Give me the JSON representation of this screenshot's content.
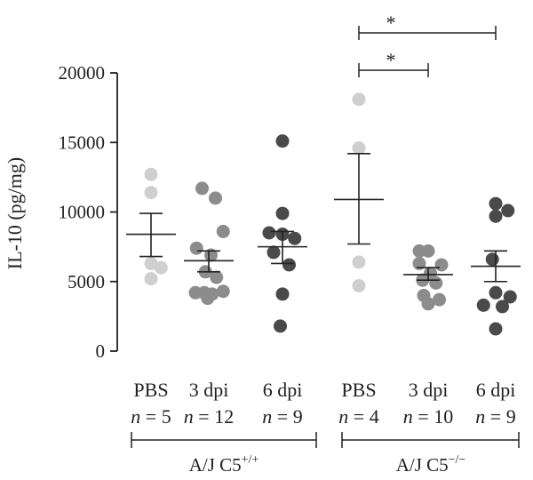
{
  "chart_data": {
    "type": "scatter",
    "ylabel": "IL-10 (pg/mg)",
    "ylim": [
      0,
      20000
    ],
    "y_ticks": [
      0,
      5000,
      10000,
      15000,
      20000
    ],
    "y_tick_labels": [
      "0",
      "5000",
      "10000",
      "15000",
      "20000"
    ],
    "group_labels": {
      "wt": {
        "prefix": "A/J C5",
        "sup": "+/+"
      },
      "ko": {
        "prefix": "A/J C5",
        "sup": "−/−"
      }
    },
    "colors": {
      "PBS": "#cfcfcf",
      "3 dpi": "#8c8c8c",
      "6 dpi": "#4a4a4a",
      "lines": "#222222"
    },
    "groups": [
      {
        "genotype": "wt",
        "label": "PBS",
        "n_label": "n = 5",
        "n_prefix": "n",
        "n_value": "= 5",
        "mean": 8400,
        "sem_low": 6800,
        "sem_high": 9900,
        "points": [
          [
            0.0,
            12700
          ],
          [
            0.0,
            11400
          ],
          [
            0.0,
            6300
          ],
          [
            0.0,
            5200
          ],
          [
            0.45,
            6000
          ]
        ]
      },
      {
        "genotype": "wt",
        "label": "3 dpi",
        "n_label": "n = 12",
        "n_prefix": "n",
        "n_value": "= 12",
        "mean": 6500,
        "sem_low": 5700,
        "sem_high": 7200,
        "points": [
          [
            -0.3,
            11700
          ],
          [
            0.3,
            11000
          ],
          [
            0.65,
            8600
          ],
          [
            -0.55,
            7400
          ],
          [
            0.1,
            6900
          ],
          [
            -0.15,
            5700
          ],
          [
            0.35,
            5300
          ],
          [
            -0.6,
            4200
          ],
          [
            0.65,
            4300
          ],
          [
            -0.2,
            4200
          ],
          [
            0.15,
            4100
          ],
          [
            -0.05,
            3800
          ]
        ]
      },
      {
        "genotype": "wt",
        "label": "6 dpi",
        "n_label": "n = 9",
        "n_prefix": "n",
        "n_value": "= 9",
        "mean": 7500,
        "sem_low": 6300,
        "sem_high": 8600,
        "points": [
          [
            0.0,
            15100
          ],
          [
            0.0,
            9900
          ],
          [
            -0.6,
            8500
          ],
          [
            0.0,
            8400
          ],
          [
            -0.4,
            7100
          ],
          [
            0.55,
            8100
          ],
          [
            0.3,
            6200
          ],
          [
            0.0,
            4100
          ],
          [
            -0.1,
            1800
          ]
        ]
      },
      {
        "genotype": "ko",
        "label": "PBS",
        "n_label": "n = 4",
        "n_prefix": "n",
        "n_value": "= 4",
        "mean": 10900,
        "sem_low": 7700,
        "sem_high": 14200,
        "points": [
          [
            0.0,
            18100
          ],
          [
            0.0,
            14600
          ],
          [
            0.0,
            6400
          ],
          [
            0.0,
            4700
          ]
        ]
      },
      {
        "genotype": "ko",
        "label": "3 dpi",
        "n_label": "n = 10",
        "n_prefix": "n",
        "n_value": "= 10",
        "mean": 5500,
        "sem_low": 5100,
        "sem_high": 6000,
        "points": [
          [
            -0.4,
            7200
          ],
          [
            0.0,
            7200
          ],
          [
            -0.4,
            6300
          ],
          [
            0.6,
            6200
          ],
          [
            0.1,
            5600
          ],
          [
            -0.25,
            5100
          ],
          [
            0.35,
            4900
          ],
          [
            -0.2,
            4000
          ],
          [
            0.5,
            3700
          ],
          [
            0.0,
            3400
          ]
        ]
      },
      {
        "genotype": "ko",
        "label": "6 dpi",
        "n_label": "n = 9",
        "n_prefix": "n",
        "n_value": "= 9",
        "mean": 6100,
        "sem_low": 5000,
        "sem_high": 7200,
        "points": [
          [
            0.0,
            10600
          ],
          [
            0.55,
            10100
          ],
          [
            0.0,
            9700
          ],
          [
            -0.15,
            6600
          ],
          [
            0.65,
            3900
          ],
          [
            0.0,
            4200
          ],
          [
            -0.55,
            3300
          ],
          [
            0.3,
            3200
          ],
          [
            0.0,
            1600
          ]
        ]
      }
    ],
    "significance": [
      {
        "from": 3,
        "to": 5,
        "y": 21800,
        "label": "*"
      },
      {
        "from": 3,
        "to": 4,
        "y": 20400,
        "label": "*"
      }
    ]
  }
}
